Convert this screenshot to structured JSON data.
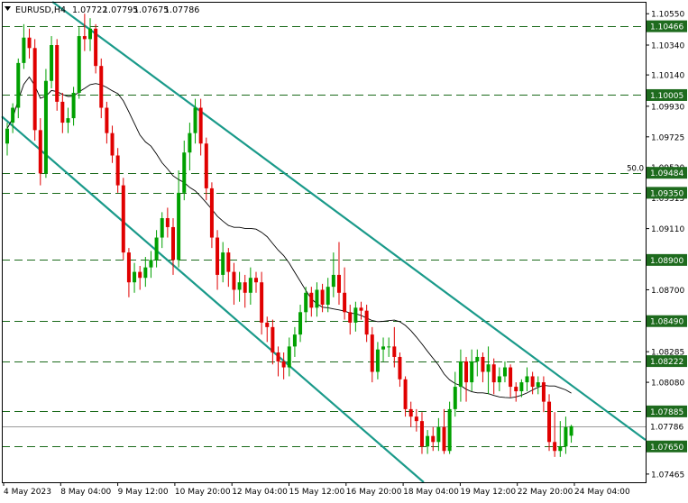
{
  "header": {
    "symbol": "EURUSD,H4",
    "open": "1.07722",
    "high": "1.07795",
    "low": "1.07675",
    "close": "1.07786"
  },
  "colors": {
    "bull": "#00a000",
    "bear": "#e00000",
    "channel": "#1a9a8a",
    "level_line": "#1a6a1a",
    "label_bg": "#1e6b1e",
    "price_line": "#9a9a9a",
    "ma": "#000000",
    "frame": "#000000"
  },
  "chart_data": {
    "type": "candlestick",
    "y_range": [
      1.0741,
      1.1063
    ],
    "price_axis_ticks": [
      "1.10550",
      "1.10340",
      "1.10140",
      "1.09930",
      "1.09725",
      "1.09520",
      "1.09315",
      "1.09110",
      "1.08900",
      "1.08700",
      "1.08490",
      "1.08285",
      "1.08080",
      "1.07875",
      "1.07670",
      "1.07465"
    ],
    "x_axis_labels": [
      "4 May 2023",
      "8 May 04:00",
      "9 May 12:00",
      "10 May 20:00",
      "12 May 04:00",
      "15 May 12:00",
      "16 May 20:00",
      "18 May 04:00",
      "19 May 12:00",
      "22 May 20:00",
      "24 May 04:00"
    ],
    "levels": [
      {
        "value": 1.10466,
        "label": "1.10466"
      },
      {
        "value": 1.10005,
        "label": "1.10005"
      },
      {
        "value": 1.09484,
        "label": "1.09484",
        "note": "50.0"
      },
      {
        "value": 1.0935,
        "label": "1.09350"
      },
      {
        "value": 1.089,
        "label": "1.08900"
      },
      {
        "value": 1.0849,
        "label": "1.08490"
      },
      {
        "value": 1.08222,
        "label": "1.08222"
      },
      {
        "value": 1.07885,
        "label": "1.07885"
      },
      {
        "value": 1.0765,
        "label": "1.07650"
      }
    ],
    "current_price": {
      "value": 1.07786,
      "label": "1.07786"
    },
    "channel": {
      "upper": [
        {
          "bar": 10,
          "price": 1.1058
        },
        {
          "bar": 107,
          "price": 1.07924
        }
      ],
      "lower": [
        {
          "bar": 0,
          "price": 1.0983
        },
        {
          "bar": 75,
          "price": 1.0742
        }
      ]
    },
    "candles": [
      [
        1.0968,
        1.0978,
        1.096,
        1.0982
      ],
      [
        1.0982,
        1.0992,
        1.0975,
        1.0995
      ],
      [
        1.0992,
        1.1022,
        1.0985,
        1.1025
      ],
      [
        1.1022,
        1.1039,
        1.1018,
        1.1048
      ],
      [
        1.1039,
        1.1032,
        1.1025,
        1.1045
      ],
      [
        1.1032,
        1.0977,
        1.097,
        1.1038
      ],
      [
        1.0977,
        1.0948,
        1.094,
        1.0985
      ],
      [
        1.0948,
        1.101,
        1.0945,
        1.1018
      ],
      [
        1.101,
        1.1034,
        1.1005,
        1.104
      ],
      [
        1.1034,
        1.0996,
        1.099,
        1.1038
      ],
      [
        1.0996,
        1.0982,
        1.0975,
        1.1002
      ],
      [
        1.0982,
        1.0985,
        1.0975,
        1.0992
      ],
      [
        1.0985,
        1.1002,
        1.098,
        1.1006
      ],
      [
        1.1002,
        1.104,
        1.0998,
        1.1046
      ],
      [
        1.104,
        1.1038,
        1.103,
        1.1055
      ],
      [
        1.1038,
        1.1045,
        1.103,
        1.1052
      ],
      [
        1.1045,
        1.102,
        1.1015,
        1.1048
      ],
      [
        1.102,
        1.0992,
        1.0985,
        1.1025
      ],
      [
        1.0992,
        1.0975,
        1.0968,
        1.0996
      ],
      [
        1.0975,
        1.096,
        1.0955,
        1.098
      ],
      [
        1.096,
        1.094,
        1.0935,
        1.0965
      ],
      [
        1.094,
        1.0895,
        1.089,
        1.0945
      ],
      [
        1.0895,
        1.0875,
        1.0865,
        1.0898
      ],
      [
        1.0875,
        1.0882,
        1.0868,
        1.0888
      ],
      [
        1.0882,
        1.0878,
        1.087,
        1.0886
      ],
      [
        1.0878,
        1.0885,
        1.0872,
        1.0892
      ],
      [
        1.0885,
        1.089,
        1.0878,
        1.0896
      ],
      [
        1.089,
        1.0905,
        1.0885,
        1.091
      ],
      [
        1.0905,
        1.0918,
        1.0898,
        1.0922
      ],
      [
        1.0918,
        1.0912,
        1.0905,
        1.0925
      ],
      [
        1.0912,
        1.089,
        1.088,
        1.0918
      ],
      [
        1.089,
        1.0935,
        1.0885,
        1.095
      ],
      [
        1.0935,
        1.0962,
        1.093,
        1.097
      ],
      [
        1.0962,
        1.0975,
        1.095,
        1.0982
      ],
      [
        1.0975,
        1.0992,
        1.0968,
        1.0998
      ],
      [
        1.0992,
        1.0968,
        1.096,
        1.0998
      ],
      [
        1.0968,
        1.0938,
        1.093,
        1.0972
      ],
      [
        1.0938,
        1.0905,
        1.0898,
        1.0942
      ],
      [
        1.0905,
        1.088,
        1.087,
        1.091
      ],
      [
        1.088,
        1.0895,
        1.0875,
        1.0902
      ],
      [
        1.0895,
        1.0882,
        1.0872,
        1.0898
      ],
      [
        1.0882,
        1.087,
        1.086,
        1.0888
      ],
      [
        1.087,
        1.0875,
        1.0862,
        1.0882
      ],
      [
        1.0875,
        1.0868,
        1.0858,
        1.088
      ],
      [
        1.0868,
        1.0878,
        1.086,
        1.0885
      ],
      [
        1.0878,
        1.0875,
        1.0868,
        1.0882
      ],
      [
        1.0875,
        1.0848,
        1.084,
        1.0882
      ],
      [
        1.0848,
        1.0845,
        1.0835,
        1.0852
      ],
      [
        1.0845,
        1.0828,
        1.082,
        1.085
      ],
      [
        1.0828,
        1.0822,
        1.0812,
        1.0832
      ],
      [
        1.0822,
        1.0818,
        1.081,
        1.0828
      ],
      [
        1.0818,
        1.0832,
        1.0812,
        1.0838
      ],
      [
        1.0832,
        1.084,
        1.0825,
        1.0845
      ],
      [
        1.084,
        1.0855,
        1.0835,
        1.086
      ],
      [
        1.0855,
        1.0868,
        1.0848,
        1.0872
      ],
      [
        1.0868,
        1.0858,
        1.0852,
        1.0872
      ],
      [
        1.0858,
        1.087,
        1.0852,
        1.0875
      ],
      [
        1.087,
        1.086,
        1.0855,
        1.0874
      ],
      [
        1.086,
        1.0872,
        1.0855,
        1.0878
      ],
      [
        1.0872,
        1.088,
        1.0865,
        1.0895
      ],
      [
        1.088,
        1.0868,
        1.086,
        1.0902
      ],
      [
        1.0868,
        1.0855,
        1.085,
        1.0885
      ],
      [
        1.0855,
        1.0848,
        1.084,
        1.086
      ],
      [
        1.0848,
        1.0858,
        1.0842,
        1.0862
      ],
      [
        1.0858,
        1.0856,
        1.085,
        1.0862
      ],
      [
        1.0856,
        1.084,
        1.0835,
        1.086
      ],
      [
        1.084,
        1.0815,
        1.0808,
        1.0845
      ],
      [
        1.0815,
        1.083,
        1.081,
        1.0835
      ],
      [
        1.083,
        1.0832,
        1.0822,
        1.0838
      ],
      [
        1.0832,
        1.0832,
        1.0825,
        1.0838
      ],
      [
        1.0832,
        1.0825,
        1.0818,
        1.0845
      ],
      [
        1.0825,
        1.081,
        1.0805,
        1.0828
      ],
      [
        1.081,
        1.079,
        1.0785,
        1.0812
      ],
      [
        1.079,
        1.0785,
        1.0778,
        1.0795
      ],
      [
        1.0785,
        1.0782,
        1.0775,
        1.079
      ],
      [
        1.0782,
        1.0765,
        1.076,
        1.0788
      ],
      [
        1.0765,
        1.0772,
        1.076,
        1.0776
      ],
      [
        1.0772,
        1.0768,
        1.0762,
        1.0778
      ],
      [
        1.0768,
        1.0778,
        1.0762,
        1.0784
      ],
      [
        1.0778,
        1.0762,
        1.076,
        1.079
      ],
      [
        1.0762,
        1.079,
        1.076,
        1.0795
      ],
      [
        1.079,
        1.0805,
        1.0785,
        1.0815
      ],
      [
        1.0805,
        1.0822,
        1.0795,
        1.083
      ],
      [
        1.0822,
        1.0808,
        1.0795,
        1.0825
      ],
      [
        1.0808,
        1.0822,
        1.0802,
        1.083
      ],
      [
        1.0822,
        1.0825,
        1.0812,
        1.083
      ],
      [
        1.0825,
        1.0815,
        1.0808,
        1.0828
      ],
      [
        1.0815,
        1.082,
        1.08,
        1.0832
      ],
      [
        1.082,
        1.0808,
        1.08,
        1.0824
      ],
      [
        1.0808,
        1.0812,
        1.0802,
        1.0818
      ],
      [
        1.0812,
        1.0818,
        1.0808,
        1.0822
      ],
      [
        1.0818,
        1.0805,
        1.0798,
        1.082
      ],
      [
        1.0805,
        1.0802,
        1.0795,
        1.0808
      ],
      [
        1.0802,
        1.0808,
        1.0798,
        1.081
      ],
      [
        1.0808,
        1.0812,
        1.0802,
        1.0818
      ],
      [
        1.0812,
        1.0805,
        1.08,
        1.0815
      ],
      [
        1.0805,
        1.0808,
        1.08,
        1.0812
      ],
      [
        1.0808,
        1.0795,
        1.0788,
        1.0812
      ],
      [
        1.0795,
        1.0768,
        1.0762,
        1.08
      ],
      [
        1.0768,
        1.0762,
        1.0758,
        1.0788
      ],
      [
        1.0762,
        1.0765,
        1.0758,
        1.0782
      ],
      [
        1.0765,
        1.0778,
        1.076,
        1.0785
      ],
      [
        1.07722,
        1.07786,
        1.07675,
        1.07795
      ]
    ]
  }
}
